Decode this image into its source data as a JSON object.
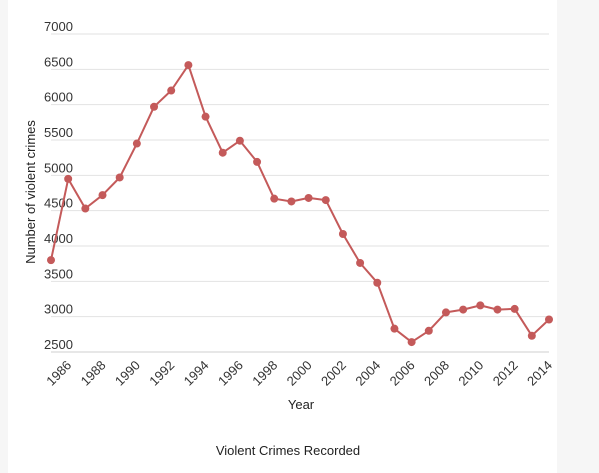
{
  "chart_data": {
    "type": "line",
    "title": "",
    "caption": "Violent Crimes Recorded",
    "xlabel": "Year",
    "ylabel": "Number of violent crimes",
    "x": [
      1985,
      1986,
      1987,
      1988,
      1989,
      1990,
      1991,
      1992,
      1993,
      1994,
      1995,
      1996,
      1997,
      1998,
      1999,
      2000,
      2001,
      2002,
      2003,
      2004,
      2005,
      2006,
      2007,
      2008,
      2009,
      2010,
      2011,
      2012,
      2013,
      2014
    ],
    "series": [
      {
        "values": [
          3800,
          4950,
          4530,
          4720,
          4970,
          5450,
          5970,
          6200,
          6560,
          5830,
          5320,
          5490,
          5190,
          4670,
          4630,
          4680,
          4650,
          4170,
          3760,
          3480,
          2830,
          2640,
          2800,
          3060,
          3100,
          3160,
          3100,
          3110,
          2730,
          2960
        ],
        "color": "#c45a5a"
      }
    ],
    "xticks": [
      1986,
      1988,
      1990,
      1992,
      1994,
      1996,
      1998,
      2000,
      2002,
      2004,
      2006,
      2008,
      2010,
      2012,
      2014
    ],
    "yticks": [
      2500,
      3000,
      3500,
      4000,
      4500,
      5000,
      5500,
      6000,
      6500,
      7000
    ],
    "ylim": [
      2500,
      7000
    ],
    "xlim": [
      1985,
      2014
    ],
    "grid": "horizontal",
    "legend": "none"
  }
}
